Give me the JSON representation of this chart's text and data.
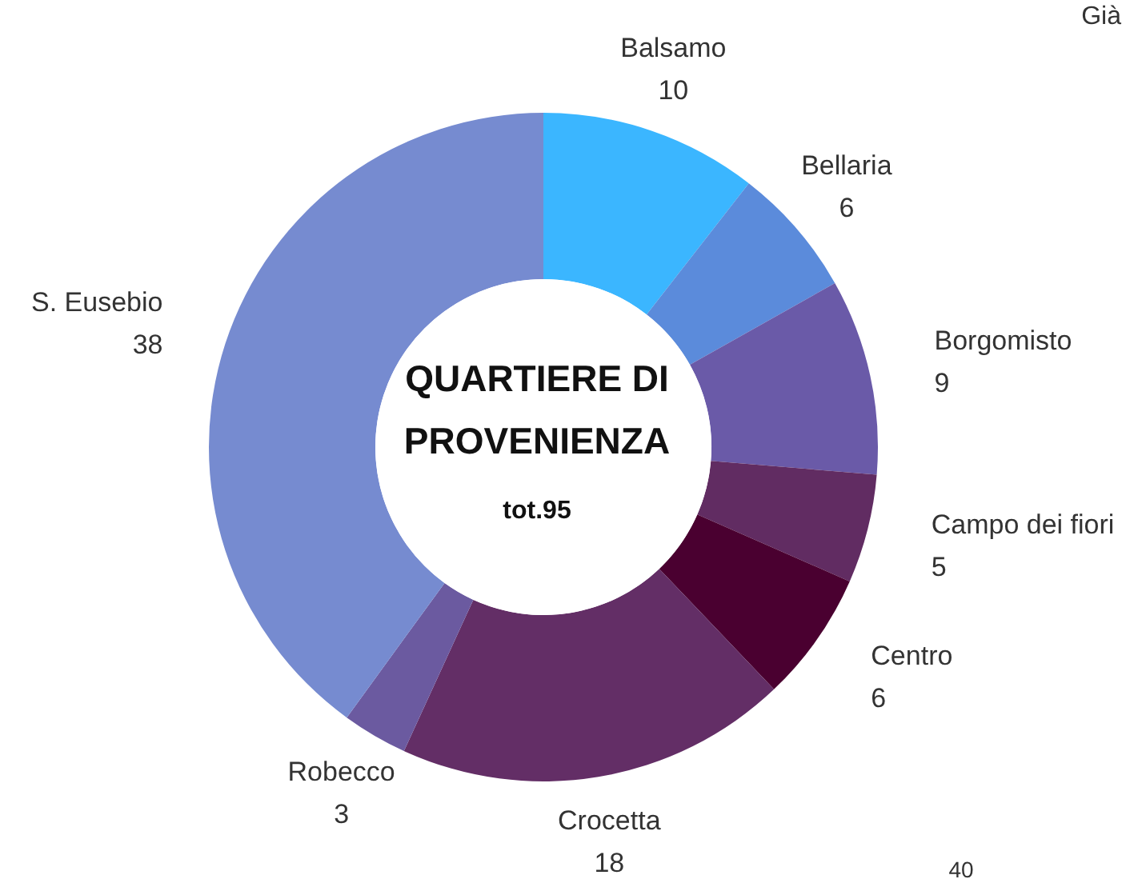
{
  "chart_data": {
    "type": "donut",
    "title": "QUARTIERE DI PROVENIENZA",
    "subtitle": "tot.95",
    "categories": [
      "Balsamo",
      "Bellaria",
      "Borgomisto",
      "Campo dei fiori",
      "Centro",
      "Crocetta",
      "Robecco",
      "S. Eusebio"
    ],
    "values": [
      10,
      6,
      9,
      5,
      6,
      18,
      3,
      38
    ],
    "colors": [
      "#3bb6ff",
      "#5b8bdb",
      "#6a5aa8",
      "#612c62",
      "#4a0030",
      "#632e66",
      "#6b5aa0",
      "#768bd0"
    ],
    "data_labels": true,
    "annotations": [
      "Già",
      "40"
    ]
  }
}
